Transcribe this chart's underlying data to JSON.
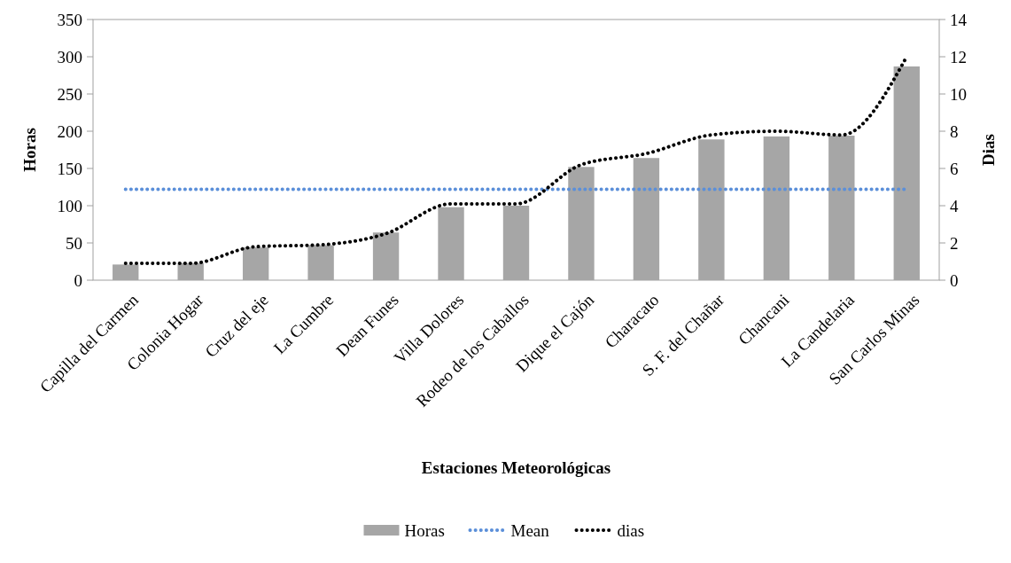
{
  "chart_data": {
    "type": "bar",
    "xlabel": "Estaciones Meteorológicas",
    "ylabel": "Horas",
    "y2label": "Dias",
    "categories": [
      "Capilla del Carmen",
      "Colonia Hogar",
      "Cruz del eje",
      "La Cumbre",
      "Dean Funes",
      "Villa Dolores",
      "Rodeo de los Caballos",
      "Dique el Cajón",
      "Characato",
      "S. F. del Chañar",
      "Chancani",
      "La Candelaria",
      "San Carlos Minas"
    ],
    "series": [
      {
        "name": "Horas",
        "color": "#a6a6a6",
        "values": [
          21,
          23,
          44,
          47,
          64,
          98,
          100,
          152,
          164,
          189,
          193,
          194,
          287
        ]
      },
      {
        "name": "Mean",
        "type": "line",
        "color": "#5b8fd9",
        "line_style": "dotted",
        "values": [
          122,
          122,
          122,
          122,
          122,
          122,
          122,
          122,
          122,
          122,
          122,
          122,
          122
        ]
      },
      {
        "name": "dias",
        "type": "line",
        "axis": "y2",
        "color": "#000000",
        "line_style": "dotted",
        "values": [
          0.9,
          0.9,
          1.8,
          1.9,
          2.5,
          4.1,
          4.1,
          6.2,
          6.8,
          7.8,
          8.0,
          7.8,
          12.0
        ]
      }
    ],
    "ylim": [
      0,
      350
    ],
    "yticks": [
      0,
      50,
      100,
      150,
      200,
      250,
      300,
      350
    ],
    "y2lim": [
      0,
      14
    ],
    "y2ticks": [
      0,
      2,
      4,
      6,
      8,
      10,
      12,
      14
    ],
    "grid": false,
    "legend": "bottom",
    "marker": "none"
  }
}
